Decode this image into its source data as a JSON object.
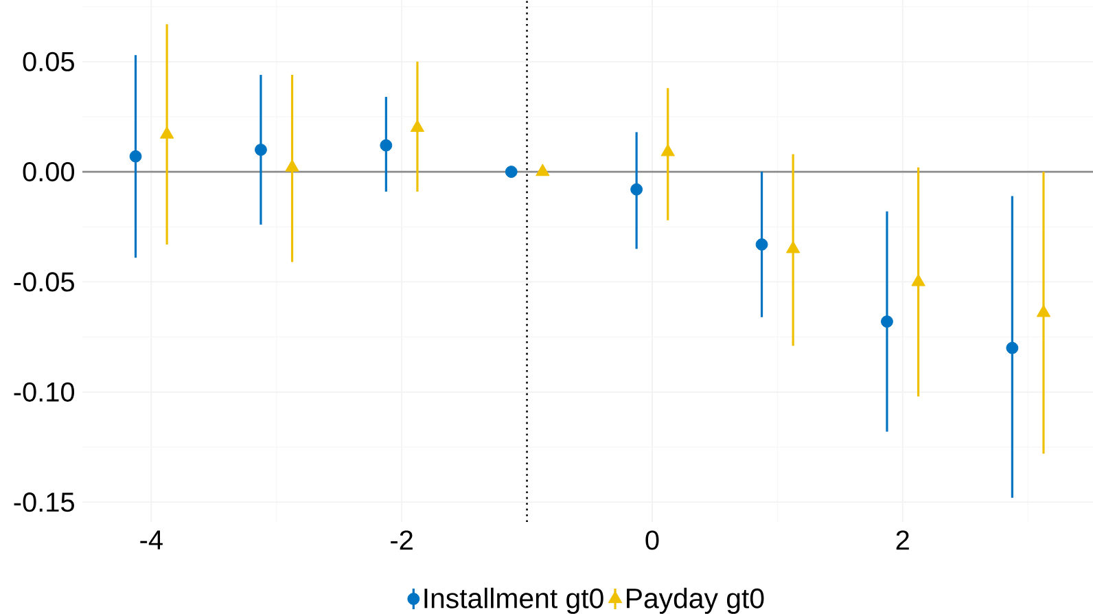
{
  "chart_data": {
    "type": "scatter",
    "xlim": [
      -4.55,
      3.52
    ],
    "xticks": [
      -4,
      -2,
      0,
      2
    ],
    "ylim": [
      -0.159,
      0.078
    ],
    "yticks": [
      {
        "value": -0.15,
        "label": "-0.15"
      },
      {
        "value": -0.1,
        "label": "-0.10"
      },
      {
        "value": -0.05,
        "label": "-0.05"
      },
      {
        "value": 0,
        "label": "0.00"
      },
      {
        "value": 0.05,
        "label": "0.05"
      }
    ],
    "grid": true,
    "legend": "bottom",
    "ref_lines": [
      {
        "axis": "y",
        "value": 0,
        "color": "#8c8c8c",
        "line_style": "solid"
      },
      {
        "axis": "x",
        "value": -1,
        "color": "#000000",
        "line_style": "dotted"
      }
    ],
    "series": [
      {
        "name": "Installment gt0",
        "color": "#0073c2",
        "marker": "circle",
        "x": [
          -4.125,
          -3.125,
          -2.125,
          -1.125,
          -0.125,
          0.875,
          1.875,
          2.875
        ],
        "values": [
          0.007,
          0.01,
          0.012,
          0,
          -0.008,
          -0.033,
          -0.068,
          -0.08
        ],
        "errors": [
          [
            -0.039,
            0.053
          ],
          [
            -0.024,
            0.044
          ],
          [
            -0.009,
            0.034
          ],
          null,
          [
            -0.035,
            0.018
          ],
          [
            -0.066,
            0.0
          ],
          [
            -0.118,
            -0.018
          ],
          [
            -0.148,
            -0.011
          ]
        ]
      },
      {
        "name": "Payday gt0",
        "color": "#efc000",
        "marker": "triangle",
        "x": [
          -3.875,
          -2.875,
          -1.875,
          -0.875,
          0.125,
          1.125,
          2.125,
          3.125
        ],
        "values": [
          0.017,
          0.002,
          0.02,
          0,
          0.009,
          -0.035,
          -0.05,
          -0.064
        ],
        "errors": [
          [
            -0.033,
            0.067
          ],
          [
            -0.041,
            0.044
          ],
          [
            -0.009,
            0.05
          ],
          null,
          [
            -0.022,
            0.038
          ],
          [
            -0.079,
            0.008
          ],
          [
            -0.102,
            0.002
          ],
          [
            -0.128,
            0.0
          ]
        ]
      }
    ]
  }
}
